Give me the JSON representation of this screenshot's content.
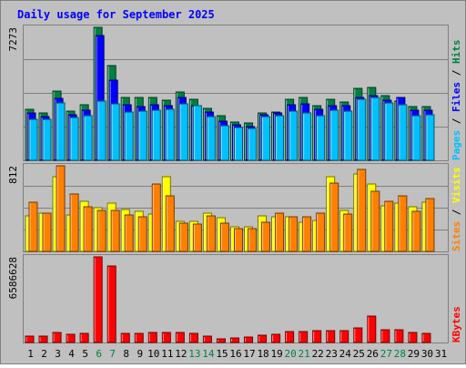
{
  "chart_data": {
    "type": "bar",
    "title": "Daily usage for September 2025",
    "categories": [
      "1",
      "2",
      "3",
      "4",
      "5",
      "6",
      "7",
      "8",
      "9",
      "10",
      "11",
      "12",
      "13",
      "14",
      "15",
      "16",
      "17",
      "18",
      "19",
      "20",
      "21",
      "22",
      "23",
      "24",
      "25",
      "26",
      "27",
      "28",
      "29",
      "30",
      "31"
    ],
    "weekend_days": [
      "6",
      "7",
      "13",
      "14",
      "20",
      "21",
      "27",
      "28"
    ],
    "panels": [
      {
        "id": "hits-files-pages",
        "ymax_label": "7273",
        "ymax": 7273,
        "grid": true,
        "legend_right": [
          {
            "text": "Pages",
            "color": "#00c0ff"
          },
          {
            "text": " / ",
            "color": "#000000"
          },
          {
            "text": "Files",
            "color": "#0000ff"
          },
          {
            "text": " / ",
            "color": "#000000"
          },
          {
            "text": "Hits",
            "color": "#008040"
          }
        ],
        "series": [
          {
            "name": "Hits",
            "color": "#008040",
            "values": [
              2780,
              2580,
              3790,
              2700,
              3060,
              7273,
              5200,
              3460,
              3420,
              3460,
              3280,
              3730,
              3340,
              2850,
              2430,
              2080,
              2050,
              2600,
              2620,
              3350,
              3430,
              2970,
              3360,
              3170,
              3920,
              4000,
              3560,
              3230,
              2920,
              2960,
              0
            ]
          },
          {
            "name": "Files",
            "color": "#0000ff",
            "values": [
              2580,
              2380,
              3390,
              2500,
              2730,
              6800,
              4400,
              3030,
              2960,
              3060,
              2970,
              3420,
              3010,
              2620,
              2130,
              1930,
              1850,
              2490,
              2590,
              3040,
              3070,
              2770,
              3000,
              3000,
              3420,
              3560,
              3290,
              3460,
              2760,
              2760,
              0
            ]
          },
          {
            "name": "Pages",
            "color": "#00c0ff",
            "values": [
              2230,
              2230,
              3130,
              2320,
              2450,
              3260,
              3070,
              2660,
              2710,
              2740,
              2770,
              3090,
              2990,
              2380,
              1900,
              1810,
              1740,
              2390,
              2460,
              2670,
              2590,
              2450,
              2750,
              2690,
              3340,
              3460,
              3140,
              3060,
              2460,
              2490,
              0
            ]
          }
        ]
      },
      {
        "id": "visits-sites",
        "ymax_label": "812",
        "ymax": 812,
        "grid": true,
        "legend_right": [
          {
            "text": "Sites",
            "color": "#ff8000"
          },
          {
            "text": " / ",
            "color": "#000000"
          },
          {
            "text": "Visits",
            "color": "#ffff00"
          }
        ],
        "series": [
          {
            "name": "Visits",
            "color": "#ffff00",
            "values": [
              335,
              365,
              712,
              347,
              476,
              415,
              455,
              398,
              383,
              358,
              712,
              288,
              282,
              362,
              318,
              232,
              232,
              337,
              330,
              330,
              277,
              291,
              712,
              390,
              733,
              643,
              430,
              460,
              422,
              464,
              0
            ]
          },
          {
            "name": "Sites",
            "color": "#ff8000",
            "values": [
              466,
              360,
              812,
              546,
              422,
              391,
              391,
              348,
              331,
              636,
              526,
              265,
              263,
              338,
              269,
              220,
              214,
              277,
              365,
              327,
              332,
              361,
              644,
              354,
              775,
              574,
              471,
              531,
              383,
              505,
              0
            ]
          }
        ]
      },
      {
        "id": "kbytes",
        "ymax_label": "6586628",
        "ymax": 6586628,
        "grid": false,
        "legend_right": [
          {
            "text": "KBytes",
            "color": "#ff0000"
          }
        ],
        "series": [
          {
            "name": "KBytes",
            "color": "#ff0000",
            "values": [
              480000,
              520000,
              740000,
              640000,
              720000,
              6586628,
              5900000,
              720000,
              700000,
              740000,
              740000,
              790000,
              730000,
              500000,
              310000,
              360000,
              410000,
              590000,
              620000,
              810000,
              830000,
              880000,
              890000,
              920000,
              1100000,
              2030000,
              990000,
              960000,
              770000,
              710000,
              0
            ]
          }
        ]
      }
    ]
  },
  "colors": {
    "background": "#c0c0c0",
    "frame": "#808080",
    "gridline": "#808080",
    "title": "#0000ff",
    "weekday_label": "#000000",
    "weekend_label": "#008040"
  }
}
